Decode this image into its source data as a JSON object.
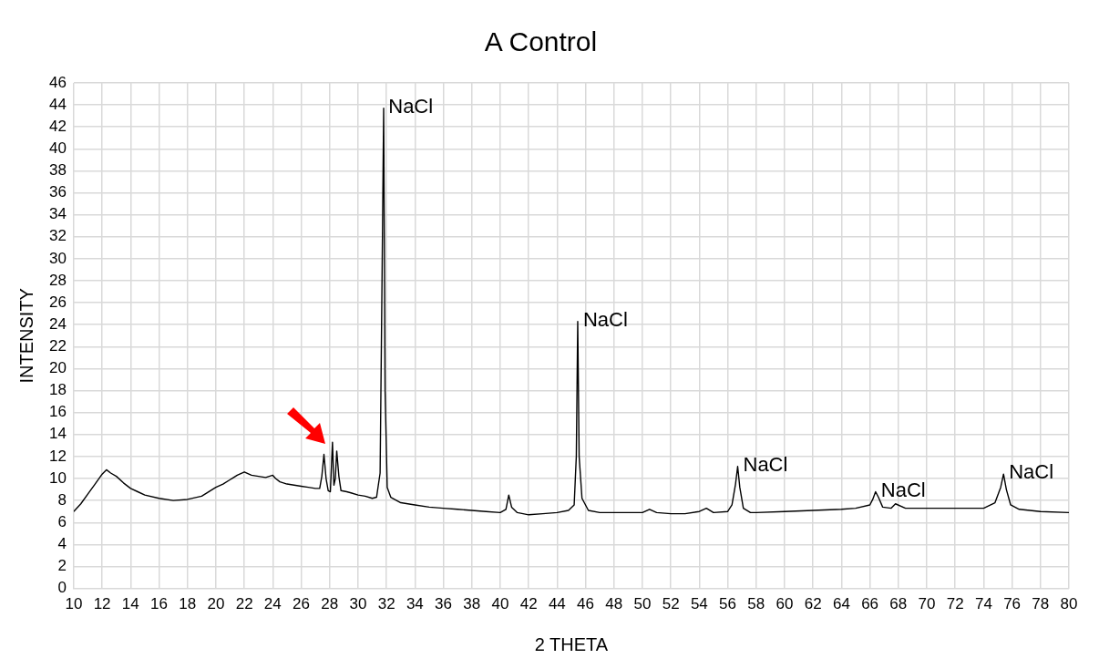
{
  "chart_data": {
    "type": "line",
    "title": "A Control",
    "xlabel": "2 THETA",
    "ylabel": "INTENSITY",
    "x": [
      10,
      10.5,
      11,
      11.5,
      12,
      12.3,
      12.6,
      13,
      13.5,
      14,
      14.5,
      15,
      16,
      17,
      18,
      19,
      20,
      20.5,
      21,
      21.5,
      22,
      22.5,
      23,
      23.5,
      24,
      24.2,
      24.5,
      25,
      25.5,
      26,
      26.5,
      27,
      27.3,
      27.45,
      27.6,
      27.75,
      27.9,
      28.05,
      28.2,
      28.3,
      28.4,
      28.5,
      28.65,
      28.8,
      29.2,
      29.5,
      30,
      30.5,
      31,
      31.3,
      31.55,
      31.7,
      31.8,
      31.9,
      32.05,
      32.3,
      33,
      34,
      35,
      36,
      37,
      38,
      39,
      40,
      40.4,
      40.6,
      40.8,
      41.2,
      42,
      43,
      44,
      44.8,
      45.2,
      45.35,
      45.45,
      45.55,
      45.75,
      46.2,
      47,
      48,
      49,
      50,
      50.5,
      51,
      52,
      53,
      54,
      54.5,
      55,
      56,
      56.3,
      56.55,
      56.7,
      56.85,
      57.1,
      57.6,
      58,
      60,
      62,
      64,
      65,
      66,
      66.2,
      66.4,
      66.6,
      66.9,
      67.5,
      67.8,
      68.5,
      70,
      72,
      74,
      74.8,
      75.2,
      75.4,
      75.6,
      75.9,
      76.5,
      78,
      80
    ],
    "series": [
      {
        "color": "#000000",
        "values": [
          7.0,
          7.7,
          8.6,
          9.5,
          10.4,
          10.8,
          10.5,
          10.2,
          9.6,
          9.1,
          8.8,
          8.5,
          8.2,
          8.0,
          8.1,
          8.4,
          9.2,
          9.5,
          9.9,
          10.3,
          10.6,
          10.3,
          10.2,
          10.1,
          10.3,
          10.0,
          9.7,
          9.5,
          9.4,
          9.3,
          9.2,
          9.1,
          9.1,
          10.2,
          12.2,
          10.0,
          8.9,
          8.8,
          13.3,
          9.4,
          10.0,
          12.5,
          10.2,
          8.9,
          8.8,
          8.7,
          8.5,
          8.4,
          8.2,
          8.3,
          10.5,
          30,
          43.7,
          18,
          9.2,
          8.3,
          7.8,
          7.6,
          7.4,
          7.3,
          7.2,
          7.1,
          7.0,
          6.9,
          7.2,
          8.5,
          7.4,
          6.9,
          6.7,
          6.8,
          6.9,
          7.1,
          7.6,
          12,
          24.3,
          12,
          8.2,
          7.1,
          6.9,
          6.9,
          6.9,
          6.9,
          7.2,
          6.9,
          6.8,
          6.8,
          7.0,
          7.3,
          6.9,
          7.0,
          7.6,
          9.5,
          11.1,
          9.2,
          7.3,
          6.9,
          6.9,
          7.0,
          7.1,
          7.2,
          7.3,
          7.6,
          8.1,
          8.8,
          8.3,
          7.4,
          7.3,
          7.7,
          7.3,
          7.3,
          7.3,
          7.3,
          7.8,
          9.2,
          10.4,
          9.0,
          7.6,
          7.2,
          7.0,
          6.9
        ]
      }
    ],
    "xlim": [
      10,
      80
    ],
    "xticks": [
      10,
      12,
      14,
      16,
      18,
      20,
      22,
      24,
      26,
      28,
      30,
      32,
      34,
      36,
      38,
      40,
      42,
      44,
      46,
      48,
      50,
      52,
      54,
      56,
      58,
      60,
      62,
      64,
      66,
      68,
      70,
      72,
      74,
      76,
      78,
      80
    ],
    "ylim": [
      0,
      46
    ],
    "yticks": [
      0,
      2,
      4,
      6,
      8,
      10,
      12,
      14,
      16,
      18,
      20,
      22,
      24,
      26,
      28,
      30,
      32,
      34,
      36,
      38,
      40,
      42,
      44,
      46
    ],
    "grid": true,
    "legend": false,
    "marker": "none",
    "line_style": "solid",
    "annotations": [
      {
        "text": "NaCl",
        "x": 31.75,
        "y": 43.7
      },
      {
        "text": "NaCl",
        "x": 45.45,
        "y": 24.3
      },
      {
        "text": "NaCl",
        "x": 56.7,
        "y": 11.1
      },
      {
        "text": "NaCl",
        "x": 66.4,
        "y": 8.8
      },
      {
        "text": "NaCl",
        "x": 75.4,
        "y": 10.4
      }
    ]
  }
}
